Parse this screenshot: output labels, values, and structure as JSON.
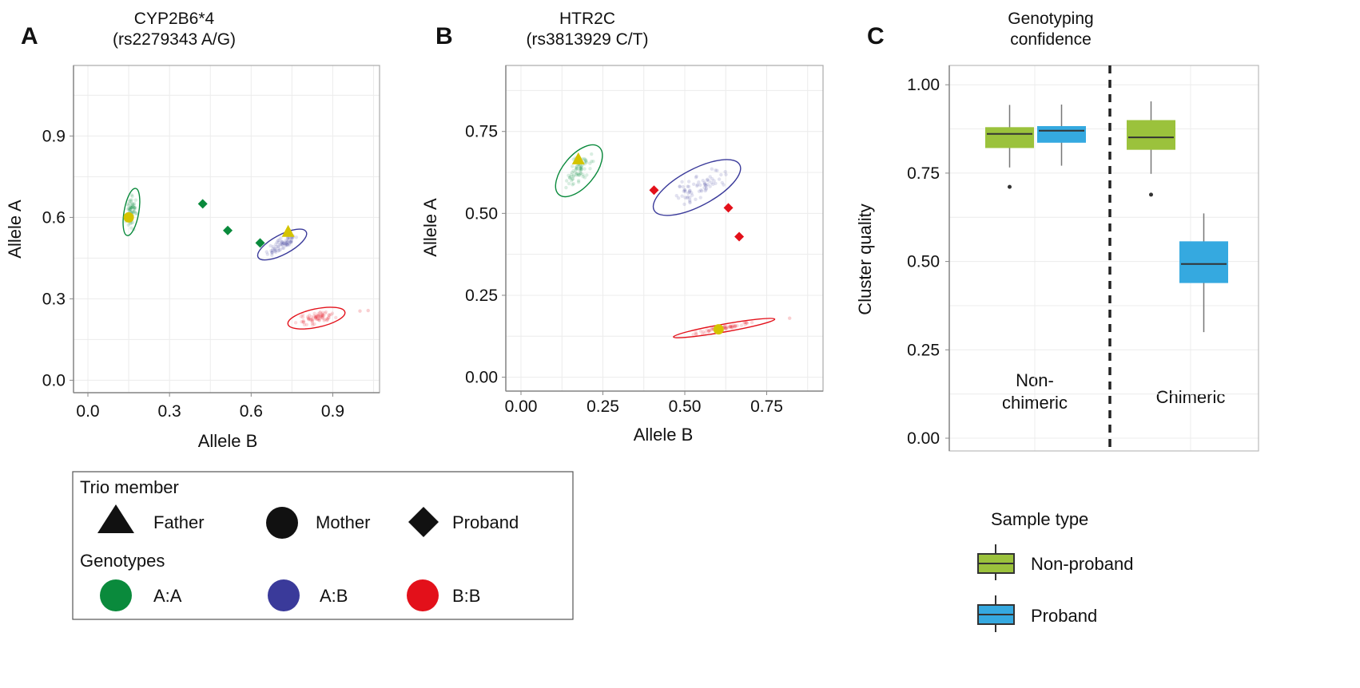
{
  "chart_data": [
    {
      "panel": "A",
      "type": "scatter",
      "title": [
        "CYP2B6*4",
        "(rs2279343 A/G)"
      ],
      "xlabel": "Allele B",
      "ylabel": "Allele A",
      "xticks": [
        "0.0",
        "0.3",
        "0.6",
        "0.9"
      ],
      "yticks": [
        "0.0",
        "0.3",
        "0.6",
        "0.9"
      ],
      "xlim": [
        -0.05,
        1.07
      ],
      "ylim": [
        -0.05,
        1.15
      ],
      "grid": true,
      "genotype_ellipses": [
        {
          "genotype": "A:A",
          "cx": 0.16,
          "cy": 0.62,
          "a": 0.088,
          "b": 0.027,
          "angle_deg": 80
        },
        {
          "genotype": "A:B",
          "cx": 0.714,
          "cy": 0.5,
          "a": 0.1,
          "b": 0.036,
          "angle_deg": 28
        },
        {
          "genotype": "B:B",
          "cx": 0.84,
          "cy": 0.229,
          "a": 0.107,
          "b": 0.034,
          "angle_deg": 12
        }
      ],
      "trio_points": [
        {
          "member": "Mother",
          "genotype_call": "yellow",
          "x": 0.15,
          "y": 0.6
        },
        {
          "member": "Father",
          "genotype_call": "yellow",
          "x": 0.736,
          "y": 0.543
        },
        {
          "member": "Proband",
          "genotype": "A:A",
          "x": 0.422,
          "y": 0.65
        },
        {
          "member": "Proband",
          "genotype": "A:A",
          "x": 0.514,
          "y": 0.552
        },
        {
          "member": "Proband",
          "genotype": "A:A",
          "x": 0.633,
          "y": 0.506
        }
      ],
      "outliers": [
        {
          "genotype": "B:B",
          "x": 1.0,
          "y": 0.255
        },
        {
          "genotype": "B:B",
          "x": 1.03,
          "y": 0.257
        }
      ]
    },
    {
      "panel": "B",
      "type": "scatter",
      "title": [
        "HTR2C",
        "(rs3813929 C/T)"
      ],
      "xlabel": "Allele B",
      "ylabel": "Allele A",
      "xticks": [
        "0.00",
        "0.25",
        "0.50",
        "0.75"
      ],
      "yticks": [
        "0.00",
        "0.25",
        "0.50",
        "0.75"
      ],
      "xlim": [
        -0.045,
        0.92
      ],
      "ylim": [
        -0.04,
        0.94
      ],
      "grid": true,
      "genotype_ellipses": [
        {
          "genotype": "A:A",
          "cx": 0.177,
          "cy": 0.63,
          "a": 0.095,
          "b": 0.048,
          "angle_deg": 50
        },
        {
          "genotype": "A:B",
          "cx": 0.537,
          "cy": 0.579,
          "a": 0.148,
          "b": 0.056,
          "angle_deg": 28
        },
        {
          "genotype": "B:B",
          "cx": 0.62,
          "cy": 0.15,
          "a": 0.157,
          "b": 0.012,
          "angle_deg": 10
        }
      ],
      "trio_points": [
        {
          "member": "Father",
          "genotype_call": "yellow",
          "x": 0.175,
          "y": 0.662
        },
        {
          "member": "Mother",
          "genotype_call": "yellow",
          "x": 0.603,
          "y": 0.146
        },
        {
          "member": "Proband",
          "genotype": "B:B",
          "x": 0.406,
          "y": 0.571
        },
        {
          "member": "Proband",
          "genotype": "B:B",
          "x": 0.633,
          "y": 0.517
        },
        {
          "member": "Proband",
          "genotype": "B:B",
          "x": 0.666,
          "y": 0.429
        }
      ],
      "outliers": [
        {
          "genotype": "B:B",
          "x": 0.82,
          "y": 0.18
        }
      ]
    },
    {
      "panel": "C",
      "type": "box",
      "title": [
        "Genotyping",
        "confidence"
      ],
      "ylabel": "Cluster quality",
      "yticks": [
        "0.00",
        "0.25",
        "0.50",
        "0.75",
        "1.00"
      ],
      "ylim": [
        -0.04,
        1.05
      ],
      "grid": true,
      "categories": [
        "Non-\nchimeric",
        "Chimeric"
      ],
      "category_lines": [
        [
          "Non-",
          "chimeric"
        ],
        [
          "Chimeric"
        ]
      ],
      "series": [
        {
          "name": "Non-proband",
          "color": "#9bc23c",
          "boxes": [
            {
              "whisker_low": 0.766,
              "q1": 0.821,
              "median": 0.861,
              "q3": 0.88,
              "whisker_high": 0.943,
              "outliers": [
                0.711
              ]
            },
            {
              "whisker_low": 0.748,
              "q1": 0.816,
              "median": 0.851,
              "q3": 0.9,
              "whisker_high": 0.953,
              "outliers": [
                0.689
              ]
            }
          ]
        },
        {
          "name": "Proband",
          "color": "#35a9e0",
          "boxes": [
            {
              "whisker_low": 0.771,
              "q1": 0.836,
              "median": 0.87,
              "q3": 0.883,
              "whisker_high": 0.944,
              "outliers": []
            },
            {
              "whisker_low": 0.3,
              "q1": 0.439,
              "median": 0.493,
              "q3": 0.557,
              "whisker_high": 0.636,
              "outliers": []
            }
          ]
        }
      ],
      "separator": "dashed vertical line between categories",
      "legend": {
        "title": "Sample type",
        "placement": "bottom",
        "items": [
          "Non-proband",
          "Proband"
        ]
      }
    }
  ],
  "panel_letters": [
    "A",
    "B",
    "C"
  ],
  "legend": {
    "trio_title": "Trio member",
    "trio_items": [
      {
        "label": "Father",
        "shape": "triangle"
      },
      {
        "label": "Mother",
        "shape": "circle"
      },
      {
        "label": "Proband",
        "shape": "diamond"
      }
    ],
    "genotype_title": "Genotypes",
    "genotype_items": [
      {
        "label": "A:A",
        "color": "#0a8a3c"
      },
      {
        "label": "A:B",
        "color": "#3a3a9a"
      },
      {
        "label": "B:B",
        "color": "#e3101a"
      }
    ]
  },
  "colors": {
    "A:A": "#0a8a3c",
    "A:B": "#3a3a9a",
    "B:B": "#e3101a",
    "parent_highlight": "#d4c400",
    "grid": "#ececec",
    "axis": "#888888"
  }
}
